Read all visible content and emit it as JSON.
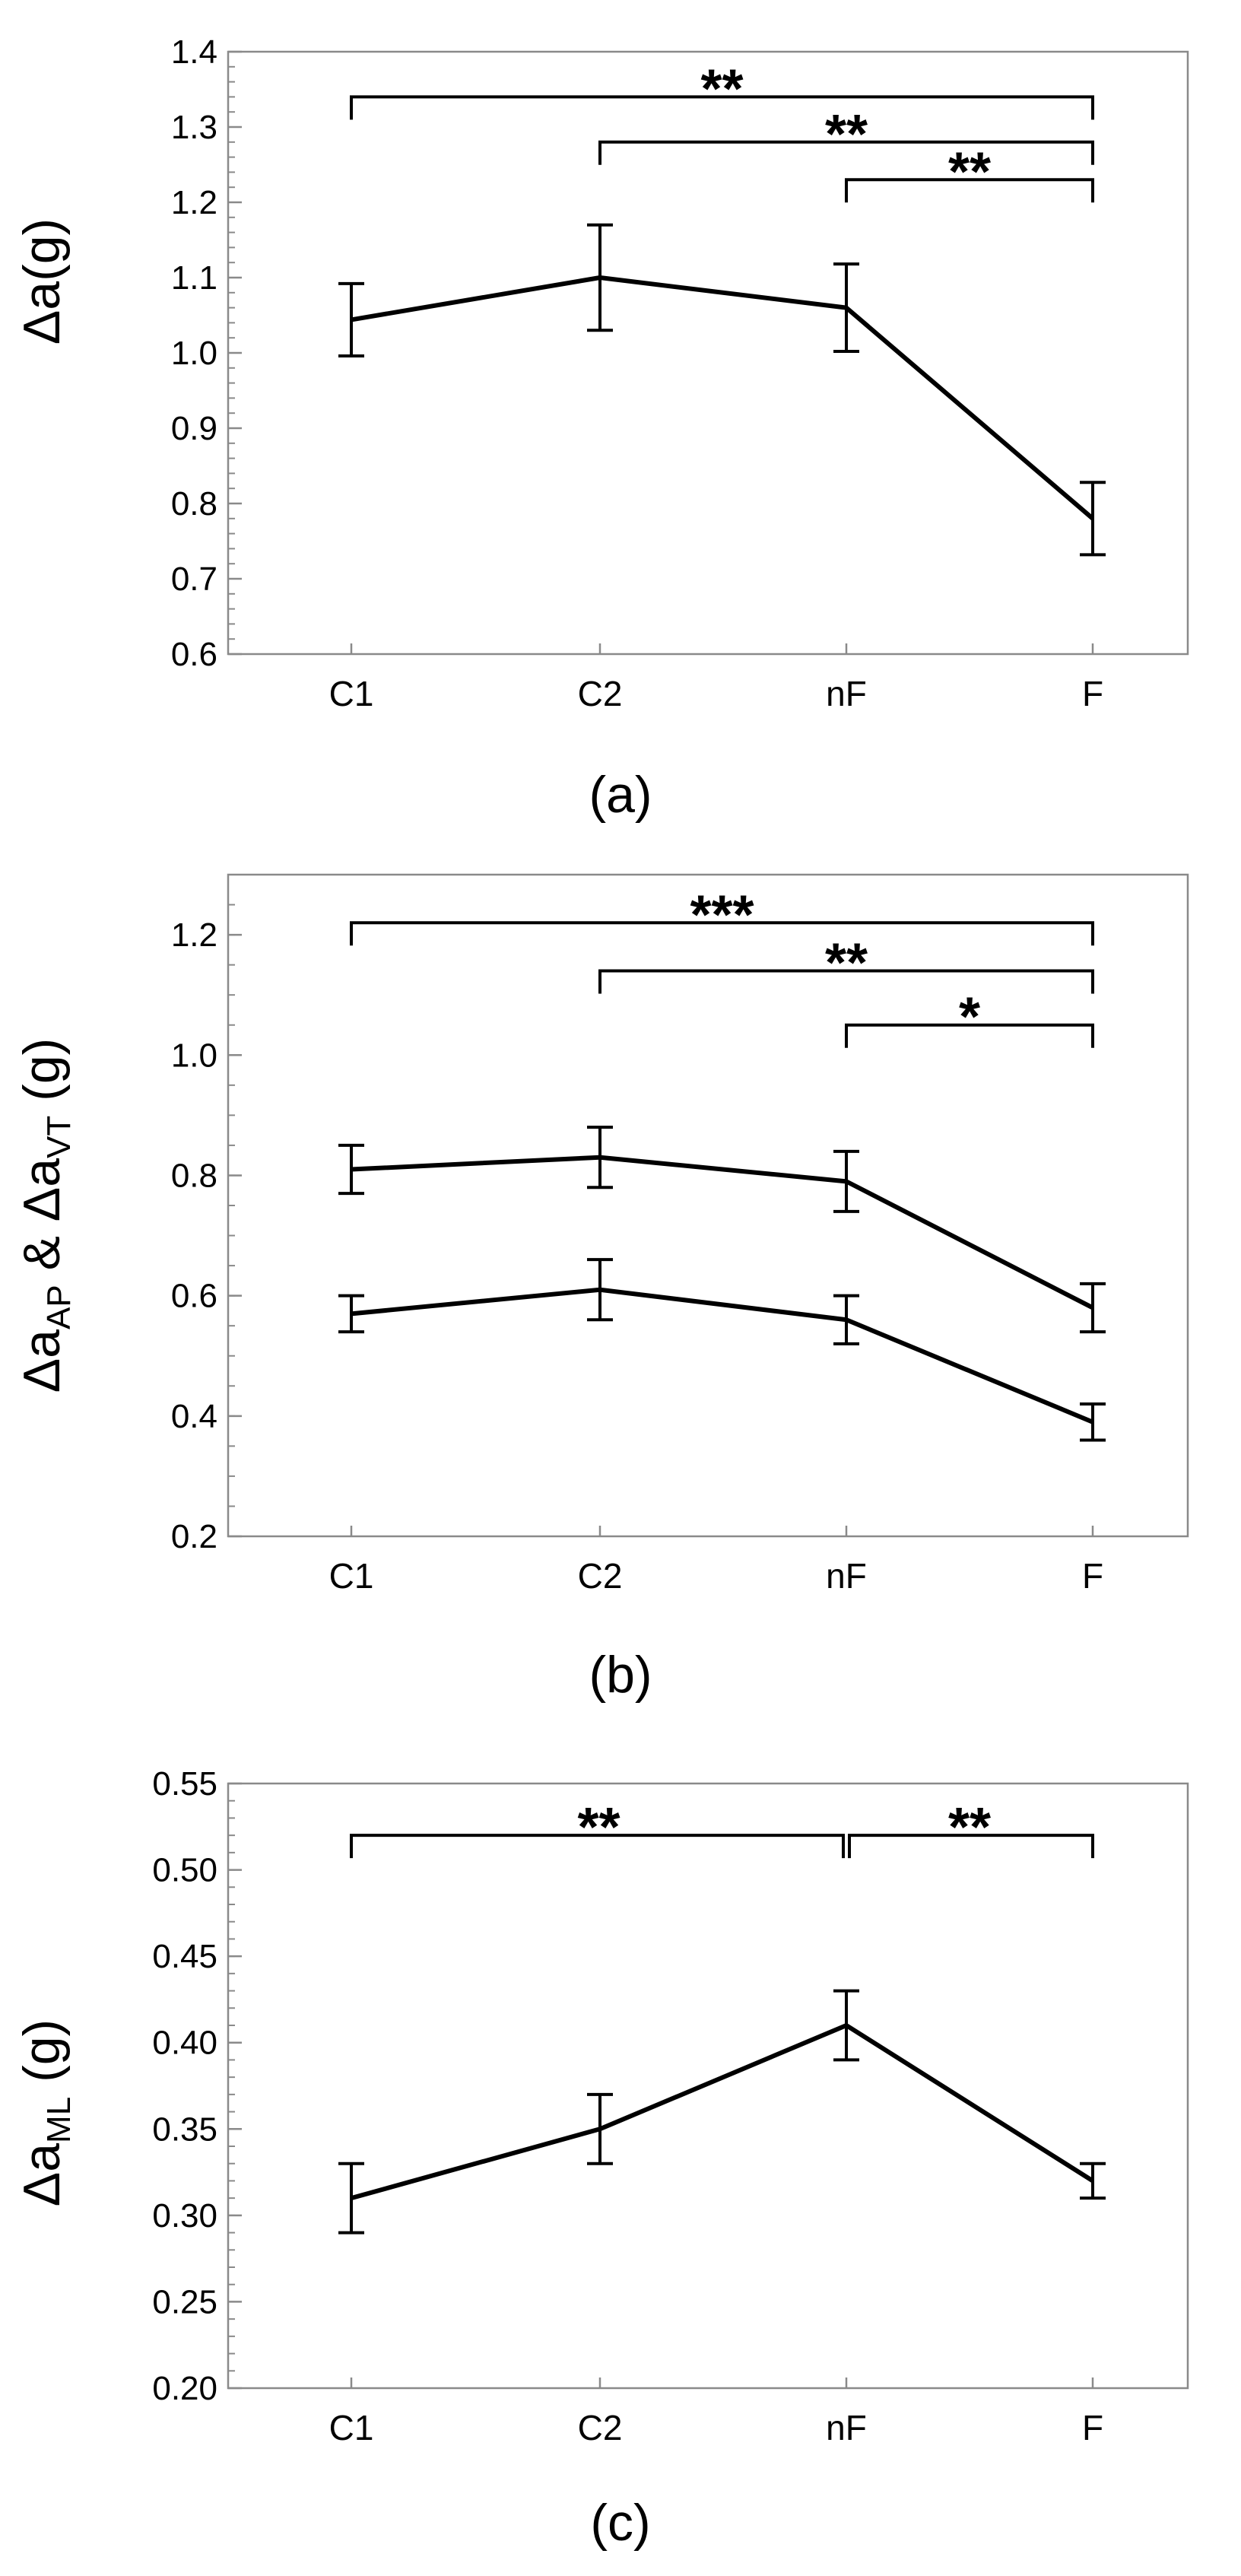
{
  "chart_data": [
    {
      "type": "line",
      "panel_label": "(a)",
      "ylabel": "Δa(g)",
      "categories": [
        "C1",
        "C2",
        "nF",
        "F"
      ],
      "ylim": [
        0.6,
        1.4
      ],
      "yticks": [
        0.6,
        0.7,
        0.8,
        0.9,
        1.0,
        1.1,
        1.2,
        1.3,
        1.4
      ],
      "ytick_labels": [
        "0.6",
        "0.7",
        "0.8",
        "0.9",
        "1.0",
        "1.1",
        "1.2",
        "1.3",
        "1.4"
      ],
      "minor_step": 0.02,
      "series": [
        {
          "name": "Δa",
          "values": [
            1.044,
            1.1,
            1.06,
            0.78
          ],
          "errors": [
            0.048,
            0.07,
            0.058,
            0.048
          ]
        }
      ],
      "significance": [
        {
          "from": "C1",
          "to": "F",
          "label": "**",
          "y": 1.34
        },
        {
          "from": "C2",
          "to": "F",
          "label": "**",
          "y": 1.28
        },
        {
          "from": "nF",
          "to": "F",
          "label": "**",
          "y": 1.23
        }
      ]
    },
    {
      "type": "line",
      "panel_label": "(b)",
      "ylabel": "Δa",
      "ylabel_sub1": "AP",
      "ylabel_mid": " & Δa",
      "ylabel_sub2": "VT",
      "ylabel_end": " (g)",
      "categories": [
        "C1",
        "C2",
        "nF",
        "F"
      ],
      "ylim": [
        0.2,
        1.3
      ],
      "yticks": [
        0.2,
        0.4,
        0.6,
        0.8,
        1.0,
        1.2
      ],
      "ytick_labels": [
        "0.2",
        "0.4",
        "0.6",
        "0.8",
        "1.0",
        "1.2"
      ],
      "minor_step": 0.05,
      "series": [
        {
          "name": "upper",
          "values": [
            0.81,
            0.83,
            0.79,
            0.58
          ],
          "errors": [
            0.04,
            0.05,
            0.05,
            0.04
          ]
        },
        {
          "name": "lower",
          "values": [
            0.57,
            0.61,
            0.56,
            0.39
          ],
          "errors": [
            0.03,
            0.05,
            0.04,
            0.03
          ]
        }
      ],
      "significance": [
        {
          "from": "C1",
          "to": "F",
          "label": "***",
          "y": 1.22
        },
        {
          "from": "C2",
          "to": "F",
          "label": "**",
          "y": 1.14
        },
        {
          "from": "nF",
          "to": "F",
          "label": "*",
          "y": 1.05
        }
      ]
    },
    {
      "type": "line",
      "panel_label": "(c)",
      "ylabel": "Δa",
      "ylabel_sub1": "ML",
      "ylabel_end": " (g)",
      "categories": [
        "C1",
        "C2",
        "nF",
        "F"
      ],
      "ylim": [
        0.2,
        0.55
      ],
      "yticks": [
        0.2,
        0.25,
        0.3,
        0.35,
        0.4,
        0.45,
        0.5,
        0.55
      ],
      "ytick_labels": [
        "0.20",
        "0.25",
        "0.30",
        "0.35",
        "0.40",
        "0.45",
        "0.50",
        "0.55"
      ],
      "minor_step": 0.01,
      "series": [
        {
          "name": "Δa_ML",
          "values": [
            0.31,
            0.35,
            0.41,
            0.32
          ],
          "errors": [
            0.02,
            0.02,
            0.02,
            0.01
          ]
        }
      ],
      "significance": [
        {
          "from": "C1",
          "to": "nF",
          "label": "**",
          "y": 0.52
        },
        {
          "from": "nF",
          "to": "F",
          "label": "**",
          "y": 0.52
        }
      ]
    }
  ]
}
